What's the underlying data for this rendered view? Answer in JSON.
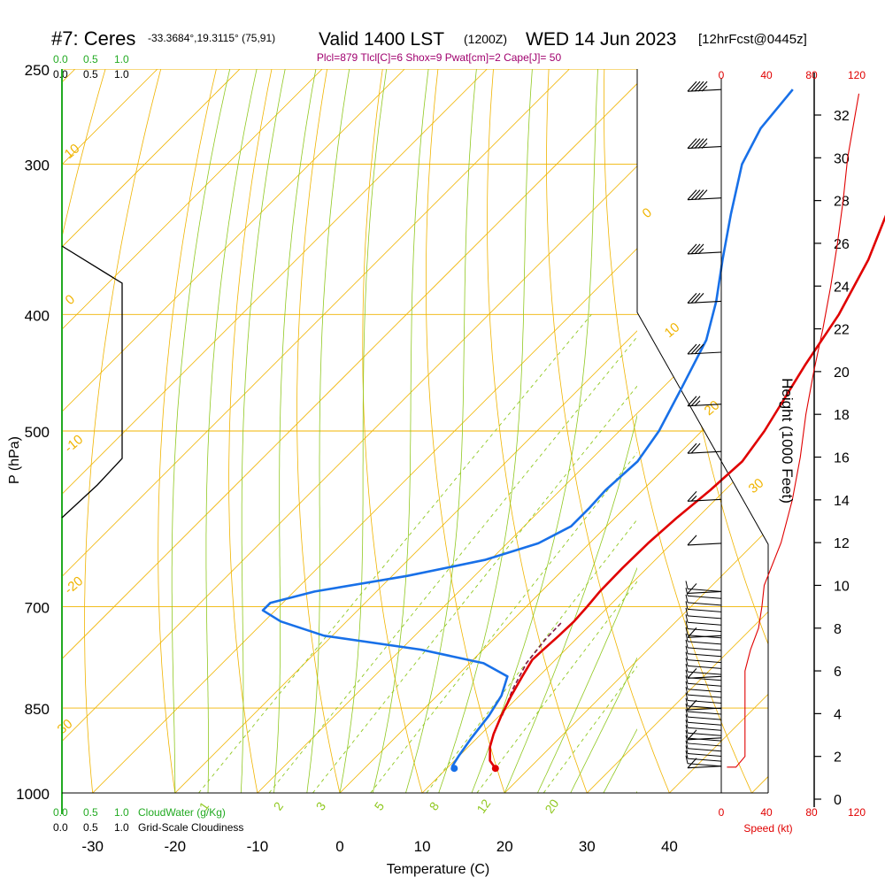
{
  "header": {
    "station": "#7: Ceres",
    "coords": "-33.3684°,19.3115° (75,91)",
    "valid": "Valid 1400 LST",
    "utc": "(1200Z)",
    "date": "WED 14 Jun 2023",
    "forecast": "[12hrFcst@0445z]",
    "indices": "Plcl=879 Tlcl[C]=6 Shox=9 Pwat[cm]=2 Cape[J]= 50"
  },
  "scales": {
    "cloudwater_ticks": [
      "0.0",
      "0.5",
      "1.0"
    ],
    "cloudiness_ticks": [
      "0.0",
      "0.5",
      "1.0"
    ],
    "cloudwater_label": "CloudWater (g/Kg)",
    "cloudiness_label": "Grid-Scale Cloudiness"
  },
  "colors": {
    "isobar": "#f0b400",
    "isotherm": "#f0b400",
    "dry_adiabat": "#f0b400",
    "moist_adiabat": "#90c820",
    "mixing_ratio": "#90c820",
    "temperature": "#e00000",
    "dewpoint": "#1870e8",
    "cloudwater": "#22aa22",
    "speed": "#e00000"
  },
  "chart_data": [
    {
      "type": "line",
      "name": "skew-t",
      "xlabel": "Temperature (C)",
      "ylabel": "P (hPa)",
      "x_ticks": [
        -30,
        -20,
        -10,
        0,
        10,
        20,
        30,
        40
      ],
      "pressure_levels": [
        250,
        300,
        400,
        500,
        700,
        850,
        1000
      ],
      "temperature_profile": [
        {
          "p": 954,
          "t": 15.9
        },
        {
          "p": 940,
          "t": 14.3
        },
        {
          "p": 915,
          "t": 12.6
        },
        {
          "p": 893,
          "t": 11.5
        },
        {
          "p": 862,
          "t": 10.2
        },
        {
          "p": 830,
          "t": 9.0
        },
        {
          "p": 800,
          "t": 8.0
        },
        {
          "p": 775,
          "t": 7.2
        },
        {
          "p": 760,
          "t": 7.3
        },
        {
          "p": 740,
          "t": 7.5
        },
        {
          "p": 720,
          "t": 7.6
        },
        {
          "p": 700,
          "t": 7.4
        },
        {
          "p": 680,
          "t": 7.1
        },
        {
          "p": 650,
          "t": 7.0
        },
        {
          "p": 620,
          "t": 7.1
        },
        {
          "p": 590,
          "t": 7.5
        },
        {
          "p": 560,
          "t": 8.2
        },
        {
          "p": 530,
          "t": 8.6
        },
        {
          "p": 500,
          "t": 7.6
        },
        {
          "p": 470,
          "t": 6.1
        },
        {
          "p": 440,
          "t": 4.5
        },
        {
          "p": 400,
          "t": 2.5
        },
        {
          "p": 360,
          "t": -0.6
        },
        {
          "p": 325,
          "t": -4.5
        },
        {
          "p": 300,
          "t": -7.5
        },
        {
          "p": 285,
          "t": -9.5
        },
        {
          "p": 270,
          "t": -10.7
        },
        {
          "p": 255,
          "t": -11.4
        }
      ],
      "dewpoint_profile": [
        {
          "p": 954,
          "t": 10.9
        },
        {
          "p": 950,
          "t": 10.4
        },
        {
          "p": 930,
          "t": 9.9
        },
        {
          "p": 900,
          "t": 9.3
        },
        {
          "p": 862,
          "t": 8.7
        },
        {
          "p": 830,
          "t": 7.8
        },
        {
          "p": 800,
          "t": 6.2
        },
        {
          "p": 780,
          "t": 1.7
        },
        {
          "p": 760,
          "t": -7.5
        },
        {
          "p": 740,
          "t": -21.0
        },
        {
          "p": 720,
          "t": -28.0
        },
        {
          "p": 705,
          "t": -31.5
        },
        {
          "p": 695,
          "t": -31.5
        },
        {
          "p": 680,
          "t": -27.5
        },
        {
          "p": 660,
          "t": -18.2
        },
        {
          "p": 640,
          "t": -10.7
        },
        {
          "p": 620,
          "t": -6.2
        },
        {
          "p": 600,
          "t": -4.3
        },
        {
          "p": 580,
          "t": -4.3
        },
        {
          "p": 560,
          "t": -4.5
        },
        {
          "p": 530,
          "t": -4.1
        },
        {
          "p": 500,
          "t": -5.2
        },
        {
          "p": 460,
          "t": -7.7
        },
        {
          "p": 420,
          "t": -10.5
        },
        {
          "p": 390,
          "t": -14.0
        },
        {
          "p": 360,
          "t": -18.3
        },
        {
          "p": 330,
          "t": -22.8
        },
        {
          "p": 300,
          "t": -27.5
        },
        {
          "p": 280,
          "t": -29.6
        },
        {
          "p": 260,
          "t": -30.4
        }
      ],
      "parcel_profile": [
        {
          "p": 862,
          "t": 10.3
        },
        {
          "p": 820,
          "t": 8.4
        },
        {
          "p": 780,
          "t": 6.9
        },
        {
          "p": 745,
          "t": 6.3
        },
        {
          "p": 720,
          "t": 6.2
        }
      ],
      "dry_adiabat_labels": [
        "-20",
        "-10",
        "0",
        "10",
        "20",
        "30"
      ],
      "mixing_ratio_labels": [
        "1",
        "2",
        "3",
        "5",
        "8",
        "12",
        "20"
      ],
      "wind_barbs": [
        {
          "p": 260,
          "speed_kt": 45,
          "dir_deg": 300
        },
        {
          "p": 290,
          "speed_kt": 45,
          "dir_deg": 290
        },
        {
          "p": 320,
          "speed_kt": 40,
          "dir_deg": 285
        },
        {
          "p": 355,
          "speed_kt": 35,
          "dir_deg": 280
        },
        {
          "p": 390,
          "speed_kt": 30,
          "dir_deg": 280
        },
        {
          "p": 430,
          "speed_kt": 30,
          "dir_deg": 290
        },
        {
          "p": 475,
          "speed_kt": 25,
          "dir_deg": 290
        },
        {
          "p": 520,
          "speed_kt": 20,
          "dir_deg": 280
        },
        {
          "p": 570,
          "speed_kt": 15,
          "dir_deg": 280
        },
        {
          "p": 620,
          "speed_kt": 10,
          "dir_deg": 280
        },
        {
          "p": 680,
          "speed_kt": 10,
          "dir_deg": 290
        },
        {
          "p": 740,
          "speed_kt": 10,
          "dir_deg": 300
        },
        {
          "p": 800,
          "speed_kt": 10,
          "dir_deg": 310
        },
        {
          "p": 850,
          "speed_kt": 10,
          "dir_deg": 320
        },
        {
          "p": 900,
          "speed_kt": 10,
          "dir_deg": 330
        },
        {
          "p": 950,
          "speed_kt": 10,
          "dir_deg": 340
        }
      ]
    },
    {
      "type": "line",
      "name": "wind-speed",
      "xlabel": "Speed (kt)",
      "ylabel": "Height (1000 Feet)",
      "xlim": [
        0,
        120
      ],
      "x_ticks": [
        "0",
        "40",
        "80",
        "120"
      ],
      "ylim": [
        0,
        34
      ],
      "y_ticks": [
        "0",
        "2",
        "4",
        "6",
        "8",
        "10",
        "12",
        "14",
        "16",
        "18",
        "20",
        "22",
        "24",
        "26",
        "28",
        "30",
        "32"
      ],
      "profile": [
        {
          "h": 1.5,
          "v": 13
        },
        {
          "h": 2.0,
          "v": 21
        },
        {
          "h": 3,
          "v": 21
        },
        {
          "h": 4.5,
          "v": 21
        },
        {
          "h": 6,
          "v": 21
        },
        {
          "h": 7,
          "v": 26
        },
        {
          "h": 8,
          "v": 33
        },
        {
          "h": 9,
          "v": 36
        },
        {
          "h": 10,
          "v": 38
        },
        {
          "h": 12,
          "v": 53
        },
        {
          "h": 14,
          "v": 63
        },
        {
          "h": 16,
          "v": 70
        },
        {
          "h": 18,
          "v": 75
        },
        {
          "h": 20,
          "v": 82
        },
        {
          "h": 22,
          "v": 90
        },
        {
          "h": 24,
          "v": 97
        },
        {
          "h": 26,
          "v": 103
        },
        {
          "h": 28,
          "v": 108
        },
        {
          "h": 30,
          "v": 112
        },
        {
          "h": 33,
          "v": 122
        }
      ]
    }
  ]
}
